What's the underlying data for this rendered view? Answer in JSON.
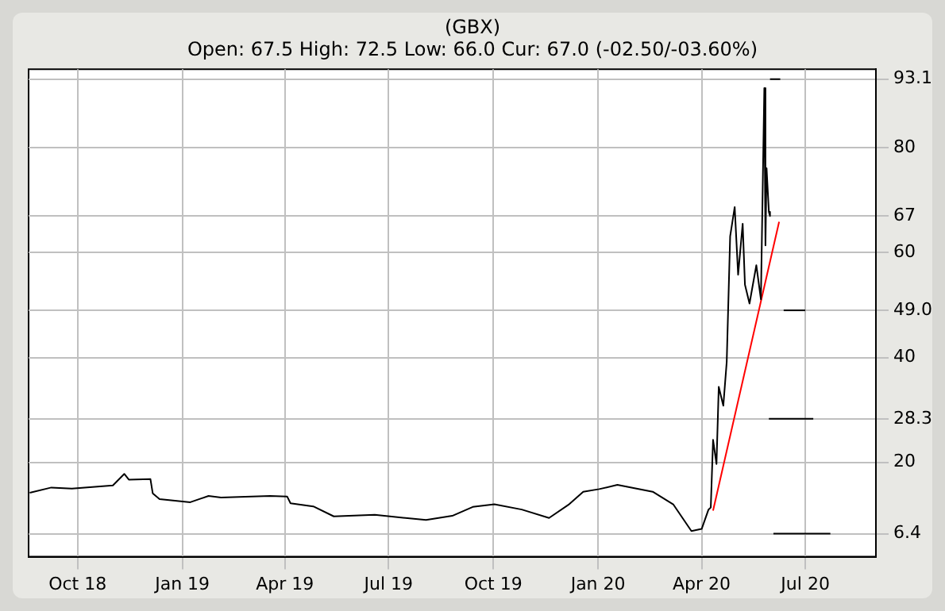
{
  "chart_data": {
    "type": "line",
    "title": "(GBX)",
    "subtitle": "Open: 67.5 High: 72.5 Low: 66.0 Cur: 67.0 (-02.50/-03.60%)",
    "series": [
      {
        "color": "#000000",
        "x": [
          "2018-08-20",
          "2018-09-08",
          "2018-09-26",
          "2018-11-01",
          "2018-11-11",
          "2018-11-15",
          "2018-12-04",
          "2018-12-06",
          "2018-12-12",
          "2019-01-08",
          "2019-01-24",
          "2019-02-04",
          "2019-03-19",
          "2019-04-03",
          "2019-04-06",
          "2019-04-26",
          "2019-05-14",
          "2019-06-19",
          "2019-08-03",
          "2019-08-26",
          "2019-09-13",
          "2019-10-02",
          "2019-10-26",
          "2019-11-19",
          "2019-12-06",
          "2019-12-19",
          "2020-01-02",
          "2020-01-18",
          "2020-02-18",
          "2020-03-07",
          "2020-03-23",
          "2020-04-01",
          "2020-04-07",
          "2020-04-09",
          "2020-04-11",
          "2020-04-14",
          "2020-04-16",
          "2020-04-20",
          "2020-04-23",
          "2020-04-26",
          "2020-04-30",
          "2020-05-03",
          "2020-05-07",
          "2020-05-09",
          "2020-05-13",
          "2020-05-19",
          "2020-05-23",
          "2020-05-26",
          "2020-05-27",
          "2020-05-28",
          "2020-05-30",
          "2020-05-31"
        ],
        "values": [
          14.2,
          15.2,
          15.0,
          15.6,
          17.8,
          16.7,
          16.8,
          14.1,
          13.0,
          12.4,
          13.6,
          13.3,
          13.6,
          13.5,
          12.2,
          11.6,
          9.7,
          10.0,
          9.0,
          9.8,
          11.5,
          12.0,
          11.0,
          9.4,
          11.9,
          14.4,
          14.9,
          15.7,
          14.4,
          12.0,
          6.9,
          7.3,
          11.0,
          11.4,
          24.3,
          19.7,
          34.4,
          30.8,
          39.2,
          63.1,
          68.7,
          55.8,
          65.5,
          53.9,
          50.3,
          57.6,
          51.1,
          91.4,
          61.4,
          76.1,
          67.8,
          67.0
        ]
      },
      {
        "type": "line",
        "color": "#ff0000",
        "x": [
          "2020-04-11",
          "2020-06-08"
        ],
        "values": [
          10.8,
          65.9
        ]
      },
      {
        "type": "line",
        "color": "#000000",
        "x": [
          "2020-05-31",
          "2020-06-09"
        ],
        "values": [
          93.1,
          93.1
        ]
      },
      {
        "type": "line",
        "color": "#000000",
        "x": [
          "2020-06-12",
          "2020-07-01"
        ],
        "values": [
          49.0,
          49.0
        ]
      },
      {
        "type": "line",
        "color": "#000000",
        "x": [
          "2020-05-30",
          "2020-07-08"
        ],
        "values": [
          28.3,
          28.3
        ]
      },
      {
        "type": "line",
        "color": "#000000",
        "x": [
          "2020-06-03",
          "2020-07-23"
        ],
        "values": [
          6.4,
          6.4
        ]
      }
    ],
    "xlim": [
      "2018-08-19",
      "2020-09-01"
    ],
    "xticks": [
      {
        "value": "2018-10-01",
        "label": "Oct 18"
      },
      {
        "value": "2019-01-01",
        "label": "Jan 19"
      },
      {
        "value": "2019-04-01",
        "label": "Apr 19"
      },
      {
        "value": "2019-07-01",
        "label": "Jul 19"
      },
      {
        "value": "2019-10-01",
        "label": "Oct 19"
      },
      {
        "value": "2020-01-01",
        "label": "Jan 20"
      },
      {
        "value": "2020-04-01",
        "label": "Apr 20"
      },
      {
        "value": "2020-07-01",
        "label": "Jul 20"
      }
    ],
    "ylim": [
      2,
      95
    ],
    "yticks": [
      {
        "value": 6.4,
        "label": "6.4"
      },
      20,
      {
        "value": 28.3,
        "label": "28.3"
      },
      40,
      {
        "value": 49.0,
        "label": "49.0"
      },
      60,
      67,
      80,
      {
        "value": 93.1,
        "label": "93.1"
      }
    ],
    "grid": true,
    "legend": false,
    "marker": "none",
    "line_style": "solid"
  }
}
